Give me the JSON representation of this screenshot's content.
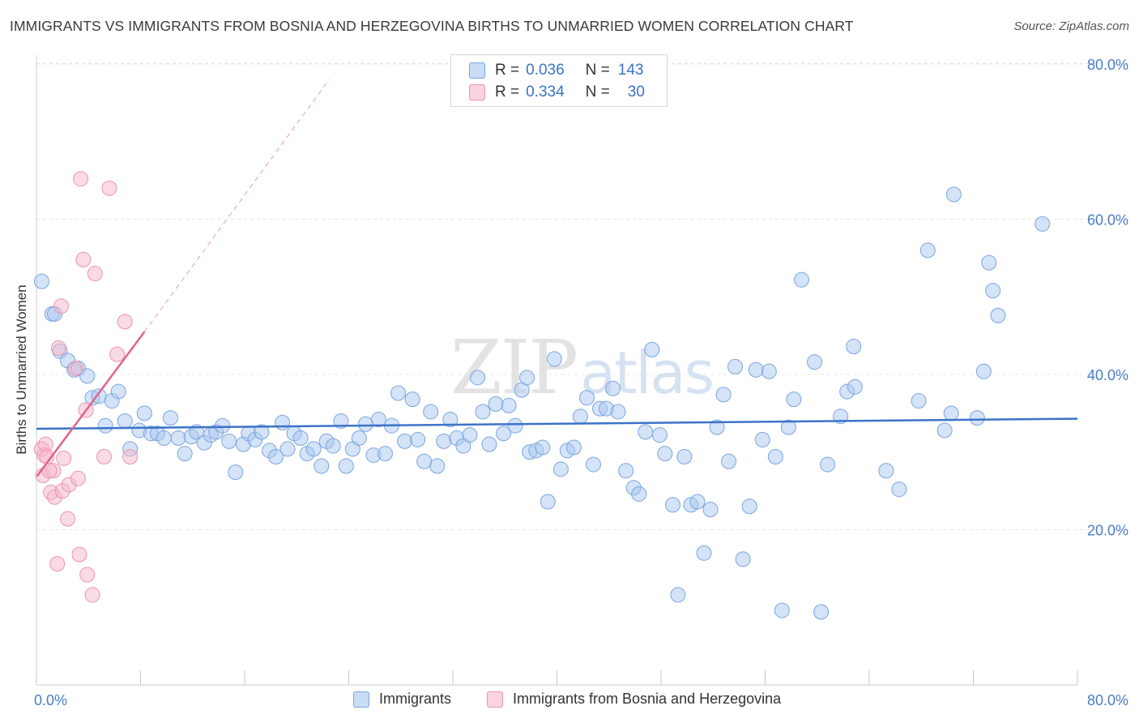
{
  "title": "IMMIGRANTS VS IMMIGRANTS FROM BOSNIA AND HERZEGOVINA BIRTHS TO UNMARRIED WOMEN CORRELATION CHART",
  "source": "Source: ZipAtlas.com",
  "watermark": "ZIPatlas",
  "stats_legend": {
    "rows": [
      {
        "r_label": "R =",
        "r_value": "0.036",
        "n_label": "N =",
        "n_value": "143",
        "color": "#a9c8f0"
      },
      {
        "r_label": "R =",
        "r_value": "0.334",
        "n_label": "N =",
        "n_value": "30",
        "color": "#f5b8c9"
      }
    ]
  },
  "bottom_legend": [
    {
      "label": "Immigrants",
      "color": "#a9c8f0"
    },
    {
      "label": "Immigrants from Bosnia and Herzegovina",
      "color": "#f5b8c9"
    }
  ],
  "chart_data": {
    "type": "scatter",
    "title": "IMMIGRANTS VS IMMIGRANTS FROM BOSNIA AND HERZEGOVINA BIRTHS TO UNMARRIED WOMEN CORRELATION CHART",
    "xlabel": "",
    "ylabel": "Births to Unmarried Women",
    "xlim": [
      0,
      80
    ],
    "ylim": [
      0,
      84
    ],
    "x_tick_labels": [
      "0.0%",
      "80.0%"
    ],
    "y_ticks": [
      20,
      40,
      60,
      80
    ],
    "y_tick_labels": [
      "20.0%",
      "40.0%",
      "60.0%",
      "80.0%"
    ],
    "grid": true,
    "legend_position": "bottom",
    "series": [
      {
        "name": "Immigrants",
        "color": "#3b73c8",
        "fill": "#a9c8f0",
        "trend": {
          "x": [
            0,
            80
          ],
          "y": [
            33.0,
            34.3
          ],
          "style": "solid"
        },
        "points": [
          [
            0.4,
            52.0
          ],
          [
            1.2,
            47.8
          ],
          [
            1.4,
            47.8
          ],
          [
            1.8,
            43.0
          ],
          [
            2.4,
            41.8
          ],
          [
            2.9,
            40.6
          ],
          [
            3.2,
            40.8
          ],
          [
            3.9,
            39.8
          ],
          [
            4.3,
            37.0
          ],
          [
            4.8,
            37.2
          ],
          [
            5.3,
            33.4
          ],
          [
            5.8,
            36.6
          ],
          [
            6.3,
            37.8
          ],
          [
            6.8,
            34.0
          ],
          [
            7.2,
            30.4
          ],
          [
            7.9,
            32.8
          ],
          [
            8.3,
            35.0
          ],
          [
            8.8,
            32.4
          ],
          [
            9.3,
            32.4
          ],
          [
            9.8,
            31.8
          ],
          [
            10.3,
            34.4
          ],
          [
            10.9,
            31.8
          ],
          [
            11.4,
            29.8
          ],
          [
            11.9,
            32.0
          ],
          [
            12.3,
            32.6
          ],
          [
            12.9,
            31.2
          ],
          [
            13.4,
            32.2
          ],
          [
            13.8,
            32.6
          ],
          [
            14.3,
            33.4
          ],
          [
            14.8,
            31.4
          ],
          [
            15.3,
            27.4
          ],
          [
            15.9,
            31.0
          ],
          [
            16.3,
            32.4
          ],
          [
            16.8,
            31.6
          ],
          [
            17.3,
            32.6
          ],
          [
            17.9,
            30.2
          ],
          [
            18.4,
            29.4
          ],
          [
            18.9,
            33.8
          ],
          [
            19.3,
            30.4
          ],
          [
            19.8,
            32.4
          ],
          [
            20.3,
            31.8
          ],
          [
            20.8,
            29.8
          ],
          [
            21.3,
            30.4
          ],
          [
            21.9,
            28.2
          ],
          [
            22.3,
            31.4
          ],
          [
            22.8,
            30.8
          ],
          [
            23.4,
            34.0
          ],
          [
            23.8,
            28.2
          ],
          [
            24.3,
            30.4
          ],
          [
            24.8,
            31.8
          ],
          [
            25.3,
            33.6
          ],
          [
            25.9,
            29.6
          ],
          [
            26.3,
            34.2
          ],
          [
            26.8,
            29.8
          ],
          [
            27.3,
            33.4
          ],
          [
            27.8,
            37.6
          ],
          [
            28.3,
            31.4
          ],
          [
            28.9,
            36.8
          ],
          [
            29.3,
            31.6
          ],
          [
            29.8,
            28.8
          ],
          [
            30.3,
            35.2
          ],
          [
            30.8,
            28.2
          ],
          [
            31.3,
            31.4
          ],
          [
            31.8,
            34.2
          ],
          [
            32.3,
            31.8
          ],
          [
            32.8,
            30.8
          ],
          [
            33.3,
            32.2
          ],
          [
            33.9,
            39.6
          ],
          [
            34.3,
            35.2
          ],
          [
            34.8,
            31.0
          ],
          [
            35.3,
            36.2
          ],
          [
            35.9,
            32.4
          ],
          [
            36.3,
            36.0
          ],
          [
            36.8,
            33.4
          ],
          [
            37.3,
            38.0
          ],
          [
            37.7,
            39.6
          ],
          [
            37.9,
            30.0
          ],
          [
            38.4,
            30.2
          ],
          [
            38.9,
            30.6
          ],
          [
            39.3,
            23.6
          ],
          [
            39.8,
            42.0
          ],
          [
            40.3,
            27.8
          ],
          [
            40.8,
            30.2
          ],
          [
            41.3,
            30.6
          ],
          [
            41.8,
            34.6
          ],
          [
            42.3,
            37.0
          ],
          [
            42.8,
            28.4
          ],
          [
            43.3,
            35.6
          ],
          [
            43.8,
            35.6
          ],
          [
            44.3,
            38.2
          ],
          [
            44.7,
            35.2
          ],
          [
            45.3,
            27.6
          ],
          [
            45.9,
            25.4
          ],
          [
            46.3,
            24.6
          ],
          [
            46.8,
            32.6
          ],
          [
            47.3,
            43.2
          ],
          [
            47.9,
            32.2
          ],
          [
            48.3,
            29.8
          ],
          [
            48.9,
            23.2
          ],
          [
            49.3,
            11.6
          ],
          [
            49.8,
            29.4
          ],
          [
            50.3,
            23.2
          ],
          [
            50.8,
            23.6
          ],
          [
            51.3,
            17.0
          ],
          [
            51.8,
            22.6
          ],
          [
            52.3,
            33.2
          ],
          [
            52.8,
            37.4
          ],
          [
            53.2,
            28.8
          ],
          [
            53.7,
            41.0
          ],
          [
            54.3,
            16.2
          ],
          [
            54.8,
            23.0
          ],
          [
            55.3,
            40.6
          ],
          [
            55.8,
            31.6
          ],
          [
            56.3,
            40.4
          ],
          [
            56.8,
            29.4
          ],
          [
            57.3,
            9.6
          ],
          [
            57.8,
            33.2
          ],
          [
            58.2,
            36.8
          ],
          [
            58.8,
            52.2
          ],
          [
            59.8,
            41.6
          ],
          [
            60.3,
            9.4
          ],
          [
            60.8,
            28.4
          ],
          [
            61.8,
            34.6
          ],
          [
            62.3,
            37.8
          ],
          [
            62.8,
            43.6
          ],
          [
            62.9,
            38.4
          ],
          [
            65.3,
            27.6
          ],
          [
            66.3,
            25.2
          ],
          [
            67.8,
            36.6
          ],
          [
            68.5,
            56.0
          ],
          [
            69.8,
            32.8
          ],
          [
            70.3,
            35.0
          ],
          [
            70.5,
            63.2
          ],
          [
            72.3,
            34.4
          ],
          [
            72.8,
            40.4
          ],
          [
            73.2,
            54.4
          ],
          [
            73.5,
            50.8
          ],
          [
            73.9,
            47.6
          ],
          [
            77.3,
            59.4
          ]
        ]
      },
      {
        "name": "Immigrants from Bosnia and Herzegovina",
        "color": "#e0638b",
        "fill": "#f5b8c9",
        "trend": {
          "x": [
            0.05,
            8.3
          ],
          "y": [
            26.9,
            45.5
          ],
          "style": "solid",
          "extended_to": [
            22.5,
            78.0
          ]
        },
        "points": [
          [
            0.4,
            30.4
          ],
          [
            0.5,
            27.0
          ],
          [
            0.6,
            29.6
          ],
          [
            0.7,
            31.0
          ],
          [
            0.8,
            29.4
          ],
          [
            1.1,
            24.8
          ],
          [
            1.3,
            27.6
          ],
          [
            1.4,
            24.2
          ],
          [
            1.6,
            15.6
          ],
          [
            1.7,
            43.4
          ],
          [
            1.9,
            48.8
          ],
          [
            2.0,
            25.0
          ],
          [
            2.1,
            29.2
          ],
          [
            2.4,
            21.4
          ],
          [
            2.5,
            25.8
          ],
          [
            3.0,
            40.8
          ],
          [
            3.2,
            26.6
          ],
          [
            3.3,
            16.8
          ],
          [
            3.4,
            65.2
          ],
          [
            3.6,
            54.8
          ],
          [
            3.8,
            35.4
          ],
          [
            3.9,
            14.2
          ],
          [
            4.3,
            11.6
          ],
          [
            4.5,
            53.0
          ],
          [
            5.2,
            29.4
          ],
          [
            5.6,
            64.0
          ],
          [
            6.2,
            42.6
          ],
          [
            6.8,
            46.8
          ],
          [
            7.2,
            29.4
          ],
          [
            1.0,
            27.6
          ]
        ]
      }
    ]
  }
}
